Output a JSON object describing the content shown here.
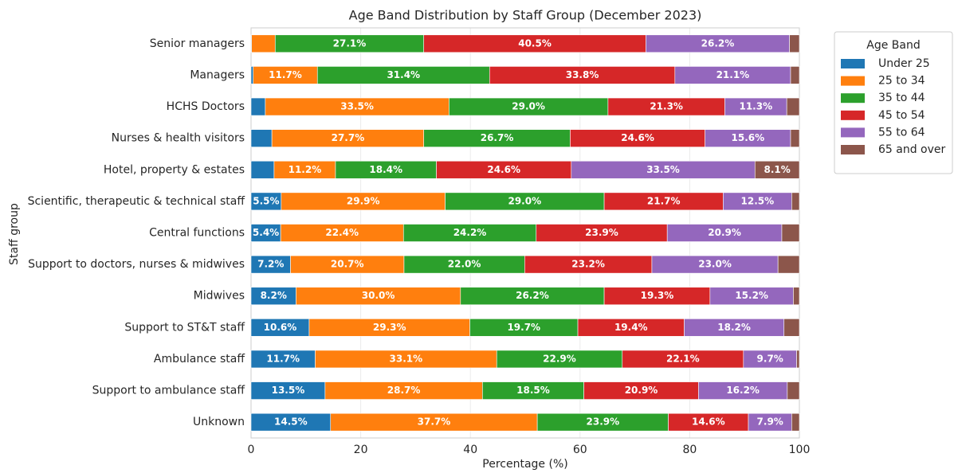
{
  "chart_data": {
    "type": "bar",
    "orientation": "horizontal",
    "stacked": true,
    "title": "Age Band Distribution by Staff Group (December 2023)",
    "xlabel": "Percentage (%)",
    "ylabel": "Staff group",
    "legend_title": "Age Band",
    "legend": "upper right outside",
    "categories": [
      "Senior managers",
      "Managers",
      "HCHS Doctors",
      "Nurses & health visitors",
      "Hotel, property & estates",
      "Scientific, therapeutic & technical staff",
      "Central functions",
      "Support to doctors, nurses & midwives",
      "Midwives",
      "Support to ST&T staff",
      "Ambulance staff",
      "Support to ambulance staff",
      "Unknown"
    ],
    "xlim": [
      0,
      100
    ],
    "xticks": [
      0,
      20,
      40,
      60,
      80,
      100
    ],
    "grid": true,
    "series": [
      {
        "name": "Under 25",
        "color": "#1f77b4",
        "values": [
          0.1,
          0.4,
          2.6,
          3.8,
          4.2,
          5.5,
          5.4,
          7.2,
          8.2,
          10.6,
          11.7,
          13.5,
          14.5
        ],
        "value_labels": [
          null,
          null,
          null,
          null,
          null,
          "5.5%",
          "5.4%",
          "7.2%",
          "8.2%",
          "10.6%",
          "11.7%",
          "13.5%",
          "14.5%"
        ]
      },
      {
        "name": "25 to 34",
        "color": "#ff7f0e",
        "values": [
          4.3,
          11.7,
          33.5,
          27.7,
          11.2,
          29.9,
          22.4,
          20.7,
          30.0,
          29.3,
          33.1,
          28.7,
          37.7
        ],
        "value_labels": [
          null,
          "11.7%",
          "33.5%",
          "27.7%",
          "11.2%",
          "29.9%",
          "22.4%",
          "20.7%",
          "30.0%",
          "29.3%",
          "33.1%",
          "28.7%",
          "37.7%"
        ]
      },
      {
        "name": "35 to 44",
        "color": "#2ca02c",
        "values": [
          27.1,
          31.4,
          29.0,
          26.7,
          18.4,
          29.0,
          24.2,
          22.0,
          26.2,
          19.7,
          22.9,
          18.5,
          23.9
        ],
        "value_labels": [
          "27.1%",
          "31.4%",
          "29.0%",
          "26.7%",
          "18.4%",
          "29.0%",
          "24.2%",
          "22.0%",
          "26.2%",
          "19.7%",
          "22.9%",
          "18.5%",
          "23.9%"
        ]
      },
      {
        "name": "45 to 54",
        "color": "#d62728",
        "values": [
          40.5,
          33.8,
          21.3,
          24.6,
          24.6,
          21.7,
          23.9,
          23.2,
          19.3,
          19.4,
          22.1,
          20.9,
          14.6
        ],
        "value_labels": [
          "40.5%",
          "33.8%",
          "21.3%",
          "24.6%",
          "24.6%",
          "21.7%",
          "23.9%",
          "23.2%",
          "19.3%",
          "19.4%",
          "22.1%",
          "20.9%",
          "14.6%"
        ]
      },
      {
        "name": "55 to 64",
        "color": "#9467bd",
        "values": [
          26.2,
          21.1,
          11.3,
          15.6,
          33.5,
          12.5,
          20.9,
          23.0,
          15.2,
          18.2,
          9.7,
          16.2,
          7.9
        ],
        "value_labels": [
          "26.2%",
          "21.1%",
          "11.3%",
          "15.6%",
          "33.5%",
          "12.5%",
          "20.9%",
          "23.0%",
          "15.2%",
          "18.2%",
          "9.7%",
          "16.2%",
          "7.9%"
        ]
      },
      {
        "name": "65 and over",
        "color": "#8c564b",
        "values": [
          1.8,
          1.6,
          2.3,
          1.6,
          8.1,
          1.4,
          3.2,
          3.9,
          1.1,
          2.8,
          0.5,
          2.2,
          1.4
        ],
        "value_labels": [
          null,
          null,
          null,
          null,
          "8.1%",
          null,
          null,
          null,
          null,
          null,
          null,
          null,
          null
        ]
      }
    ]
  }
}
